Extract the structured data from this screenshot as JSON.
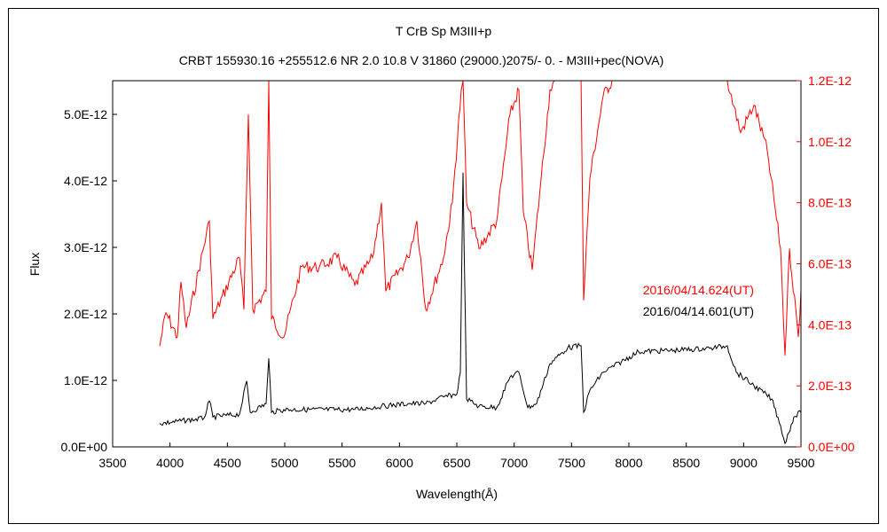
{
  "chart_data": {
    "type": "line",
    "title": "T CrB   Sp M3III+p",
    "subtitle": "CRBT 155930.16 +255512.6 NR 2.0 10.8 V 31860 (29000.)2075/-  0. - M3III+pec(NOVA)",
    "xlabel": "Wavelength(Å)",
    "ylabel": "Flux",
    "xlim": [
      3500,
      9500
    ],
    "ylim_left": [
      0,
      5.5e-12
    ],
    "ylim_right": [
      0,
      1.2e-12
    ],
    "xticks": [
      "3500",
      "4000",
      "4500",
      "5000",
      "5500",
      "6000",
      "6500",
      "7000",
      "7500",
      "8000",
      "8500",
      "9000",
      "9500"
    ],
    "yticks_left": [
      "0.0E+00",
      "1.0E-12",
      "2.0E-12",
      "3.0E-12",
      "4.0E-12",
      "5.0E-12"
    ],
    "yticks_right": [
      "0.0E+00",
      "2.0E-13",
      "4.0E-13",
      "6.0E-13",
      "8.0E-13",
      "1.0E-12",
      "1.2E-12"
    ],
    "flux_unit": "1e-12",
    "series": [
      {
        "name": "2016/04/14.624(UT)",
        "color": "#ff0000",
        "axis": "right",
        "x": [
          3910,
          3964,
          4064,
          4095,
          4142,
          4343,
          4374,
          4606,
          4644,
          4683,
          4722,
          4838,
          4861,
          4885,
          4992,
          5147,
          5302,
          5456,
          5611,
          5765,
          5843,
          5881,
          6075,
          6152,
          6229,
          6384,
          6461,
          6539,
          6554,
          6585,
          6693,
          6848,
          6964,
          7041,
          7080,
          7157,
          7235,
          7312,
          7351,
          7450,
          7583,
          7606,
          7660,
          7776,
          7853,
          8400,
          8858,
          8974,
          9090,
          9206,
          9322,
          9361,
          9400,
          9477,
          9500
        ],
        "y": [
          0.33,
          0.44,
          0.36,
          0.54,
          0.39,
          0.74,
          0.42,
          0.62,
          0.45,
          1.09,
          0.45,
          0.51,
          1.2,
          0.42,
          0.36,
          0.59,
          0.59,
          0.62,
          0.53,
          0.62,
          0.8,
          0.51,
          0.62,
          0.74,
          0.45,
          0.62,
          0.8,
          1.17,
          1.2,
          0.8,
          0.65,
          0.74,
          1.09,
          1.17,
          0.77,
          0.58,
          0.88,
          1.17,
          1.2,
          1.6,
          1.2,
          0.48,
          0.88,
          1.15,
          1.2,
          1.6,
          1.2,
          1.03,
          1.12,
          0.97,
          0.65,
          0.3,
          0.65,
          0.36,
          0.51
        ]
      },
      {
        "name": "2016/04/14.601(UT)",
        "color": "#000000",
        "axis": "left",
        "x": [
          3910,
          4296,
          4343,
          4374,
          4606,
          4668,
          4699,
          4838,
          4861,
          4885,
          4992,
          5611,
          5843,
          6075,
          6229,
          6384,
          6500,
          6531,
          6554,
          6585,
          6693,
          6848,
          6964,
          7041,
          7119,
          7196,
          7312,
          7467,
          7583,
          7606,
          7660,
          7776,
          8085,
          8394,
          8704,
          8858,
          8936,
          9090,
          9245,
          9322,
          9361,
          9438,
          9500
        ],
        "y": [
          0.35,
          0.43,
          0.69,
          0.45,
          0.49,
          0.99,
          0.52,
          0.65,
          1.33,
          0.52,
          0.56,
          0.56,
          0.61,
          0.65,
          0.65,
          0.75,
          0.79,
          1.12,
          4.12,
          0.72,
          0.61,
          0.59,
          1.05,
          1.12,
          0.59,
          0.65,
          1.25,
          1.49,
          1.52,
          0.52,
          0.85,
          1.12,
          1.43,
          1.45,
          1.48,
          1.52,
          1.12,
          0.92,
          0.72,
          0.32,
          0.05,
          0.45,
          0.52
        ]
      }
    ]
  }
}
